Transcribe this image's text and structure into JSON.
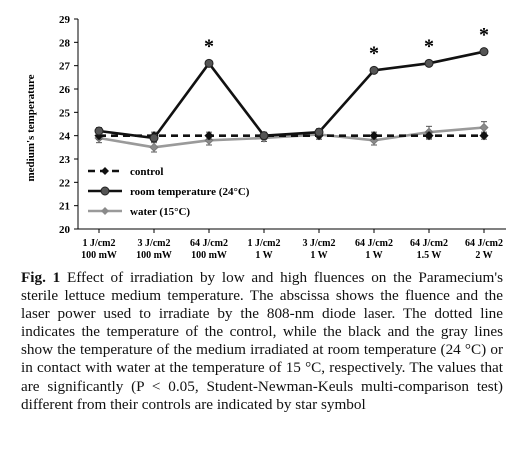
{
  "chart_data": {
    "type": "line",
    "ylabel": "medium's temperature",
    "ylim": [
      20,
      29
    ],
    "yticks": [
      20,
      21,
      22,
      23,
      24,
      25,
      26,
      27,
      28,
      29
    ],
    "categories": [
      [
        "1 J/cm2",
        "100 mW"
      ],
      [
        "3 J/cm2",
        "100 mW"
      ],
      [
        "64 J/cm2",
        "100 mW"
      ],
      [
        "1 J/cm2",
        "1 W"
      ],
      [
        "3 J/cm2",
        "1 W"
      ],
      [
        "64 J/cm2",
        "1 W"
      ],
      [
        "64 J/cm2",
        "1.5 W"
      ],
      [
        "64 J/cm2",
        "2 W"
      ]
    ],
    "series": [
      {
        "name": "control",
        "style": "dashed",
        "color": "#111111",
        "marker": "diamond",
        "values": [
          24.0,
          24.0,
          24.0,
          24.0,
          24.0,
          24.0,
          24.0,
          24.0
        ],
        "errors": [
          0.15,
          0.15,
          0.15,
          0.15,
          0.15,
          0.15,
          0.15,
          0.15
        ]
      },
      {
        "name": "room temperature (24°C)",
        "style": "solid",
        "color": "#111111",
        "marker": "circle",
        "values": [
          24.2,
          23.9,
          27.1,
          24.0,
          24.15,
          26.8,
          27.1,
          27.6
        ],
        "errors": [
          0.15,
          0.15,
          0.12,
          0.12,
          0.15,
          0.12,
          0.12,
          0.12
        ]
      },
      {
        "name": "water (15°C)",
        "style": "solid",
        "color": "#9a9a9a",
        "marker": "diamond",
        "values": [
          23.9,
          23.5,
          23.8,
          23.9,
          24.05,
          23.8,
          24.15,
          24.35
        ],
        "errors": [
          0.2,
          0.2,
          0.2,
          0.15,
          0.2,
          0.2,
          0.25,
          0.25
        ]
      }
    ],
    "significant": [
      2,
      5,
      6,
      7
    ],
    "significance_marker": "*",
    "legend_placement": "bottom-left",
    "grid": false
  },
  "caption": {
    "label": "Fig. 1",
    "text": "Effect of irradiation by low and high fluences on the Paramecium's sterile lettuce medium temperature. The abscissa shows the fluence and the laser power used to irradiate by the 808-nm diode laser. The dotted line indicates the temperature of the control, while the black and the gray lines show the temperature of the medium irradiated at room temperature (24 °C) or in contact with water at the temperature of 15 °C, respectively. The values that are significantly (P < 0.05, Student-Newman-Keuls multi-comparison test) different from their controls are indicated by star symbol"
  }
}
